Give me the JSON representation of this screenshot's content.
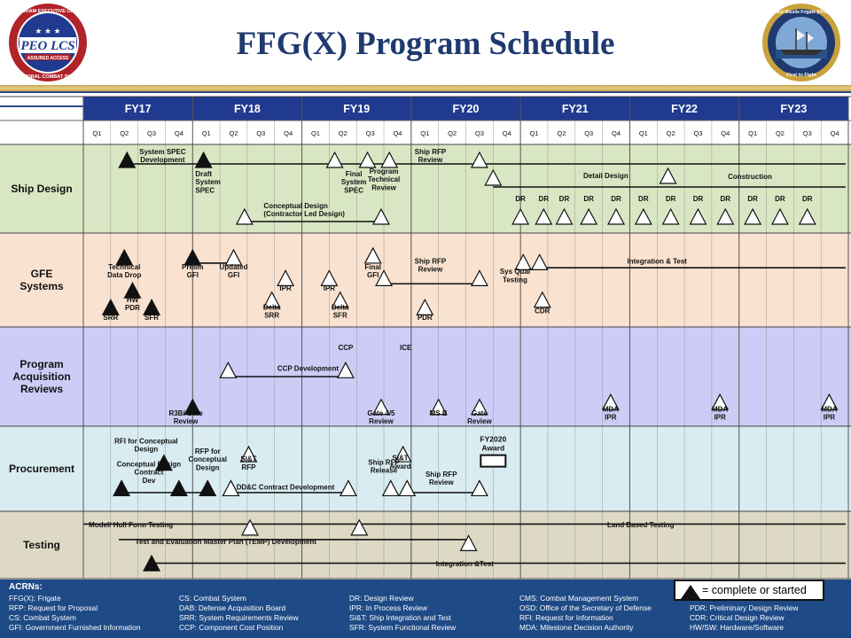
{
  "title": "FFG(X) Program Schedule",
  "logos": {
    "left": {
      "top": "PROGRAM EXECUTIVE OFFICE",
      "main": "PEO LCS",
      "ribbon": "ASSURED ACCESS",
      "bottom": "LITTORAL COMBAT SHIPS"
    },
    "right": {
      "top": "Guided Missile Frigate (FFG(X))",
      "bottom": "First to Fight"
    }
  },
  "colors": {
    "header": "#1f3a8f",
    "ship_design": "#d9e6c3",
    "gfe": "#f9e2cf",
    "acq": "#ccccf6",
    "proc": "#d9ecf1",
    "testing": "#ddd9c4",
    "legend": "#1e4a86"
  },
  "fiscal_years": [
    "FY17",
    "FY18",
    "FY19",
    "FY20",
    "FY21",
    "FY22",
    "FY23"
  ],
  "quarters": [
    "Q1",
    "Q2",
    "Q3",
    "Q4"
  ],
  "rows": [
    {
      "name": "Ship Design",
      "key": "ship_design"
    },
    {
      "name": "GFE\nSystems",
      "key": "gfe"
    },
    {
      "name": "Program\nAcquisition\nReviews",
      "key": "acq"
    },
    {
      "name": "Procurement",
      "key": "proc"
    },
    {
      "name": "Testing",
      "key": "testing"
    }
  ],
  "milestones": [
    {
      "q": 1.6,
      "row": 0,
      "p": 0.09,
      "filled": true
    },
    {
      "q": 4.4,
      "row": 0,
      "p": 0.09,
      "filled": true
    },
    {
      "q": 9.2,
      "row": 0,
      "p": 0.09,
      "filled": false
    },
    {
      "q": 10.4,
      "row": 0,
      "p": 0.09,
      "filled": false
    },
    {
      "q": 11.2,
      "row": 0,
      "p": 0.09,
      "filled": false
    },
    {
      "q": 14.5,
      "row": 0,
      "p": 0.09,
      "filled": false
    },
    {
      "q": 15.0,
      "row": 0,
      "p": 0.29,
      "filled": false
    },
    {
      "q": 21.4,
      "row": 0,
      "p": 0.27,
      "filled": false
    },
    {
      "q": 5.9,
      "row": 0,
      "p": 0.73,
      "filled": false
    },
    {
      "q": 10.9,
      "row": 0,
      "p": 0.73,
      "filled": false
    },
    {
      "q": 16.0,
      "row": 0,
      "p": 0.73,
      "filled": false
    },
    {
      "q": 16.85,
      "row": 0,
      "p": 0.73,
      "filled": false
    },
    {
      "q": 17.6,
      "row": 0,
      "p": 0.73,
      "filled": false
    },
    {
      "q": 18.5,
      "row": 0,
      "p": 0.73,
      "filled": false
    },
    {
      "q": 19.5,
      "row": 0,
      "p": 0.73,
      "filled": false
    },
    {
      "q": 20.5,
      "row": 0,
      "p": 0.73,
      "filled": false
    },
    {
      "q": 21.5,
      "row": 0,
      "p": 0.73,
      "filled": false
    },
    {
      "q": 22.5,
      "row": 0,
      "p": 0.73,
      "filled": false
    },
    {
      "q": 23.5,
      "row": 0,
      "p": 0.73,
      "filled": false
    },
    {
      "q": 24.5,
      "row": 0,
      "p": 0.73,
      "filled": false
    },
    {
      "q": 25.5,
      "row": 0,
      "p": 0.73,
      "filled": false
    },
    {
      "q": 26.5,
      "row": 0,
      "p": 0.73,
      "filled": false
    },
    {
      "q": 1.5,
      "row": 1,
      "p": 0.18,
      "filled": true
    },
    {
      "q": 4.0,
      "row": 1,
      "p": 0.18,
      "filled": true
    },
    {
      "q": 5.5,
      "row": 1,
      "p": 0.18,
      "filled": false
    },
    {
      "q": 10.6,
      "row": 1,
      "p": 0.16,
      "filled": false
    },
    {
      "q": 1.0,
      "row": 1,
      "p": 0.71,
      "filled": true
    },
    {
      "q": 1.8,
      "row": 1,
      "p": 0.53,
      "filled": true
    },
    {
      "q": 2.5,
      "row": 1,
      "p": 0.71,
      "filled": true
    },
    {
      "q": 7.4,
      "row": 1,
      "p": 0.4,
      "filled": false
    },
    {
      "q": 9.0,
      "row": 1,
      "p": 0.4,
      "filled": false
    },
    {
      "q": 6.9,
      "row": 1,
      "p": 0.63,
      "filled": false
    },
    {
      "q": 9.4,
      "row": 1,
      "p": 0.63,
      "filled": false
    },
    {
      "q": 11.0,
      "row": 1,
      "p": 0.4,
      "filled": false
    },
    {
      "q": 12.5,
      "row": 1,
      "p": 0.71,
      "filled": false
    },
    {
      "q": 14.5,
      "row": 1,
      "p": 0.4,
      "filled": false
    },
    {
      "q": 16.1,
      "row": 1,
      "p": 0.23,
      "filled": false
    },
    {
      "q": 16.7,
      "row": 1,
      "p": 0.23,
      "filled": false
    },
    {
      "q": 16.8,
      "row": 1,
      "p": 0.63,
      "filled": false
    },
    {
      "q": 5.3,
      "row": 2,
      "p": 0.36,
      "filled": false
    },
    {
      "q": 9.6,
      "row": 2,
      "p": 0.36,
      "filled": false
    },
    {
      "q": 4.0,
      "row": 2,
      "p": 0.73,
      "filled": true
    },
    {
      "q": 10.9,
      "row": 2,
      "p": 0.73,
      "filled": false
    },
    {
      "q": 13.0,
      "row": 2,
      "p": 0.73,
      "filled": false
    },
    {
      "q": 14.5,
      "row": 2,
      "p": 0.73,
      "filled": false
    },
    {
      "q": 19.3,
      "row": 2,
      "p": 0.68,
      "filled": false
    },
    {
      "q": 23.3,
      "row": 2,
      "p": 0.68,
      "filled": false
    },
    {
      "q": 27.3,
      "row": 2,
      "p": 0.68,
      "filled": false
    },
    {
      "q": 2.95,
      "row": 3,
      "p": 0.34,
      "filled": true
    },
    {
      "q": 1.4,
      "row": 3,
      "p": 0.64,
      "filled": true
    },
    {
      "q": 3.5,
      "row": 3,
      "p": 0.64,
      "filled": true
    },
    {
      "q": 4.55,
      "row": 3,
      "p": 0.64,
      "filled": true
    },
    {
      "q": 6.05,
      "row": 3,
      "p": 0.24,
      "filled": false
    },
    {
      "q": 5.4,
      "row": 3,
      "p": 0.64,
      "filled": false
    },
    {
      "q": 9.7,
      "row": 3,
      "p": 0.64,
      "filled": false
    },
    {
      "q": 11.7,
      "row": 3,
      "p": 0.24,
      "filled": false
    },
    {
      "q": 11.25,
      "row": 3,
      "p": 0.64,
      "filled": false
    },
    {
      "q": 11.85,
      "row": 3,
      "p": 0.64,
      "filled": false
    },
    {
      "q": 14.5,
      "row": 3,
      "p": 0.64,
      "filled": false
    },
    {
      "q": 6.1,
      "row": 4,
      "p": 0.13,
      "filled": false
    },
    {
      "q": 10.1,
      "row": 4,
      "p": 0.13,
      "filled": false
    },
    {
      "q": 14.1,
      "row": 4,
      "p": 0.36,
      "filled": false
    },
    {
      "q": 2.5,
      "row": 4,
      "p": 0.66,
      "filled": true
    }
  ],
  "bars": [
    {
      "q1": 1.6,
      "q2": 27.9,
      "row": 0,
      "p": 0.22
    },
    {
      "q1": 15.0,
      "q2": 27.9,
      "row": 0,
      "p": 0.48
    },
    {
      "q1": 5.9,
      "q2": 10.9,
      "row": 0,
      "p": 0.87
    },
    {
      "q1": 4.0,
      "q2": 5.5,
      "row": 1,
      "p": 0.32
    },
    {
      "q1": 11.0,
      "q2": 14.5,
      "row": 1,
      "p": 0.54
    },
    {
      "q1": 16.7,
      "q2": 27.9,
      "row": 1,
      "p": 0.37
    },
    {
      "q1": 5.3,
      "q2": 9.6,
      "row": 2,
      "p": 0.5
    },
    {
      "q1": 1.4,
      "q2": 4.55,
      "row": 3,
      "p": 0.78
    },
    {
      "q1": 5.4,
      "q2": 9.7,
      "row": 3,
      "p": 0.78
    },
    {
      "q1": 11.85,
      "q2": 14.5,
      "row": 3,
      "p": 0.78
    },
    {
      "q1": 0.0,
      "q2": 27.9,
      "row": 4,
      "p": 0.19
    },
    {
      "q1": 1.3,
      "q2": 14.1,
      "row": 4,
      "p": 0.42
    },
    {
      "q1": 2.5,
      "q2": 27.9,
      "row": 4,
      "p": 0.77
    }
  ],
  "annotations": [
    {
      "text": "System  SPEC\nDevelopment",
      "q": 2.9,
      "row": 0,
      "p": 0.03,
      "anchor": "middle"
    },
    {
      "text": "Draft\nSystem\nSPEC",
      "q": 4.1,
      "row": 0,
      "p": 0.28,
      "anchor": "start"
    },
    {
      "text": "Final\nSystem\nSPEC",
      "q": 9.9,
      "row": 0,
      "p": 0.28,
      "anchor": "middle"
    },
    {
      "text": "Program\nTechnical\nReview",
      "q": 11.0,
      "row": 0,
      "p": 0.25,
      "anchor": "middle"
    },
    {
      "text": "Ship RFP\nReview",
      "q": 12.7,
      "row": 0,
      "p": 0.03,
      "anchor": "middle"
    },
    {
      "text": "Detail  Design",
      "q": 18.3,
      "row": 0,
      "p": 0.3,
      "anchor": "start"
    },
    {
      "text": "Construction",
      "q": 24.4,
      "row": 0,
      "p": 0.31,
      "anchor": "middle"
    },
    {
      "text": "Conceptual Design\n(Contractor Led Design)",
      "q": 6.6,
      "row": 0,
      "p": 0.64,
      "anchor": "start"
    },
    {
      "text": "DR",
      "q": 16.0,
      "row": 0,
      "p": 0.56,
      "anchor": "middle"
    },
    {
      "text": "DR",
      "q": 16.85,
      "row": 0,
      "p": 0.56,
      "anchor": "middle"
    },
    {
      "text": "DR",
      "q": 17.6,
      "row": 0,
      "p": 0.56,
      "anchor": "middle"
    },
    {
      "text": "DR",
      "q": 18.5,
      "row": 0,
      "p": 0.56,
      "anchor": "middle"
    },
    {
      "text": "DR",
      "q": 19.5,
      "row": 0,
      "p": 0.56,
      "anchor": "middle"
    },
    {
      "text": "DR",
      "q": 20.5,
      "row": 0,
      "p": 0.56,
      "anchor": "middle"
    },
    {
      "text": "DR",
      "q": 21.5,
      "row": 0,
      "p": 0.56,
      "anchor": "middle"
    },
    {
      "text": "DR",
      "q": 22.5,
      "row": 0,
      "p": 0.56,
      "anchor": "middle"
    },
    {
      "text": "DR",
      "q": 23.5,
      "row": 0,
      "p": 0.56,
      "anchor": "middle"
    },
    {
      "text": "DR",
      "q": 24.5,
      "row": 0,
      "p": 0.56,
      "anchor": "middle"
    },
    {
      "text": "DR",
      "q": 25.5,
      "row": 0,
      "p": 0.56,
      "anchor": "middle"
    },
    {
      "text": "DR",
      "q": 26.5,
      "row": 0,
      "p": 0.56,
      "anchor": "middle"
    },
    {
      "text": "Technical\nData Drop",
      "q": 1.5,
      "row": 1,
      "p": 0.31,
      "anchor": "middle"
    },
    {
      "text": "Prelim\nGFI",
      "q": 4.0,
      "row": 1,
      "p": 0.31,
      "anchor": "middle"
    },
    {
      "text": "Updated\nGFI",
      "q": 5.5,
      "row": 1,
      "p": 0.31,
      "anchor": "middle"
    },
    {
      "text": "Final\nGFI",
      "q": 10.6,
      "row": 1,
      "p": 0.31,
      "anchor": "middle"
    },
    {
      "text": "Ship RFP\nReview",
      "q": 12.7,
      "row": 1,
      "p": 0.25,
      "anchor": "middle"
    },
    {
      "text": "HW\nPDR",
      "q": 1.8,
      "row": 1,
      "p": 0.66,
      "anchor": "middle"
    },
    {
      "text": "SRR",
      "q": 1.0,
      "row": 1,
      "p": 0.85,
      "anchor": "middle"
    },
    {
      "text": "SFR",
      "q": 2.5,
      "row": 1,
      "p": 0.85,
      "anchor": "middle"
    },
    {
      "text": "IPR",
      "q": 7.4,
      "row": 1,
      "p": 0.54,
      "anchor": "middle"
    },
    {
      "text": "IPR",
      "q": 9.0,
      "row": 1,
      "p": 0.54,
      "anchor": "middle"
    },
    {
      "text": "Delta\nSRR",
      "q": 6.9,
      "row": 1,
      "p": 0.74,
      "anchor": "middle"
    },
    {
      "text": "Delta\nSFR",
      "q": 9.4,
      "row": 1,
      "p": 0.74,
      "anchor": "middle"
    },
    {
      "text": "PDR",
      "q": 12.5,
      "row": 1,
      "p": 0.85,
      "anchor": "middle"
    },
    {
      "text": "Sys Qual\nTesting",
      "q": 15.8,
      "row": 1,
      "p": 0.36,
      "anchor": "middle"
    },
    {
      "text": "CDR",
      "q": 16.8,
      "row": 1,
      "p": 0.78,
      "anchor": "middle"
    },
    {
      "text": "Integration & Test",
      "q": 21.0,
      "row": 1,
      "p": 0.25,
      "anchor": "middle"
    },
    {
      "text": "CCP",
      "q": 9.6,
      "row": 2,
      "p": 0.16,
      "anchor": "middle"
    },
    {
      "text": "ICE",
      "q": 11.8,
      "row": 2,
      "p": 0.16,
      "anchor": "middle"
    },
    {
      "text": "CCP Development",
      "q": 7.1,
      "row": 2,
      "p": 0.37,
      "anchor": "start"
    },
    {
      "text": "R3B/ Gate\nReview",
      "q": 3.75,
      "row": 2,
      "p": 0.82,
      "anchor": "middle"
    },
    {
      "text": "Gate 4/5\nReview",
      "q": 10.9,
      "row": 2,
      "p": 0.82,
      "anchor": "middle"
    },
    {
      "text": "MS  B",
      "q": 13.0,
      "row": 2,
      "p": 0.82,
      "anchor": "middle"
    },
    {
      "text": "Gate\nReview",
      "q": 14.5,
      "row": 2,
      "p": 0.82,
      "anchor": "middle"
    },
    {
      "text": "MDA\nIPR",
      "q": 19.3,
      "row": 2,
      "p": 0.78,
      "anchor": "middle"
    },
    {
      "text": "MDA\nIPR",
      "q": 23.3,
      "row": 2,
      "p": 0.78,
      "anchor": "middle"
    },
    {
      "text": "MDA\nIPR",
      "q": 27.3,
      "row": 2,
      "p": 0.78,
      "anchor": "middle"
    },
    {
      "text": "RFI for Conceptual\nDesign",
      "q": 2.3,
      "row": 3,
      "p": 0.12,
      "anchor": "middle"
    },
    {
      "text": "Conceptual  Design\nContract\nDev",
      "q": 2.4,
      "row": 3,
      "p": 0.39,
      "anchor": "middle"
    },
    {
      "text": "RFP for\nConceptual\nDesign",
      "q": 4.55,
      "row": 3,
      "p": 0.24,
      "anchor": "middle"
    },
    {
      "text": "SI&T\nRFP",
      "q": 6.05,
      "row": 3,
      "p": 0.33,
      "anchor": "middle"
    },
    {
      "text": "DD&C Contract Development",
      "q": 5.6,
      "row": 3,
      "p": 0.66,
      "anchor": "start"
    },
    {
      "text": "Ship RFP\nRelease",
      "q": 11.0,
      "row": 3,
      "p": 0.37,
      "anchor": "middle"
    },
    {
      "text": "SI&T\nAward",
      "q": 11.6,
      "row": 3,
      "p": 0.32,
      "anchor": "middle"
    },
    {
      "text": "Ship RFP\nReview",
      "q": 13.1,
      "row": 3,
      "p": 0.51,
      "anchor": "middle"
    },
    {
      "text": "FY2020\nAward",
      "q": 15.0,
      "row": 3,
      "p": 0.1,
      "anchor": "middle"
    },
    {
      "text": "Model/ Hull Form Testing",
      "q": 0.2,
      "row": 4,
      "p": 0.13,
      "anchor": "start"
    },
    {
      "text": "Land Based Testing",
      "q": 20.4,
      "row": 4,
      "p": 0.13,
      "anchor": "middle"
    },
    {
      "text": "Test and Evaluation  Master  Plan (TEMP)  Development",
      "q": 1.9,
      "row": 4,
      "p": 0.38,
      "anchor": "start"
    },
    {
      "text": "Integration &Test",
      "q": 12.9,
      "row": 4,
      "p": 0.71,
      "anchor": "start"
    }
  ],
  "legend": {
    "title": "ACRNs:",
    "key_text": "= complete or started",
    "columns": [
      [
        "FFG(X): Frigate",
        "RFP: Request for Proposal",
        "CS: Combat System",
        "GFI: Government Furnished Information"
      ],
      [
        "CS: Combat System",
        "DAB: Defense Acquisition Board",
        "SRR: System Requirements Review",
        "CCP: Component Cost Position"
      ],
      [
        "DR: Design Review",
        "IPR: In Process Review",
        "SI&T: Ship Integration and Test",
        "SFR: System Functional Review"
      ],
      [
        "CMS: Combat Management System",
        "OSD: Office of the Secretary of Defense",
        "RFI: Request for Information",
        "MDA: Milestone Decision Authority"
      ],
      [
        "",
        "PDR: Preliminary Design Review",
        "CDR: Critical Design Review",
        "HW/SW: Hardware/Software"
      ]
    ]
  }
}
